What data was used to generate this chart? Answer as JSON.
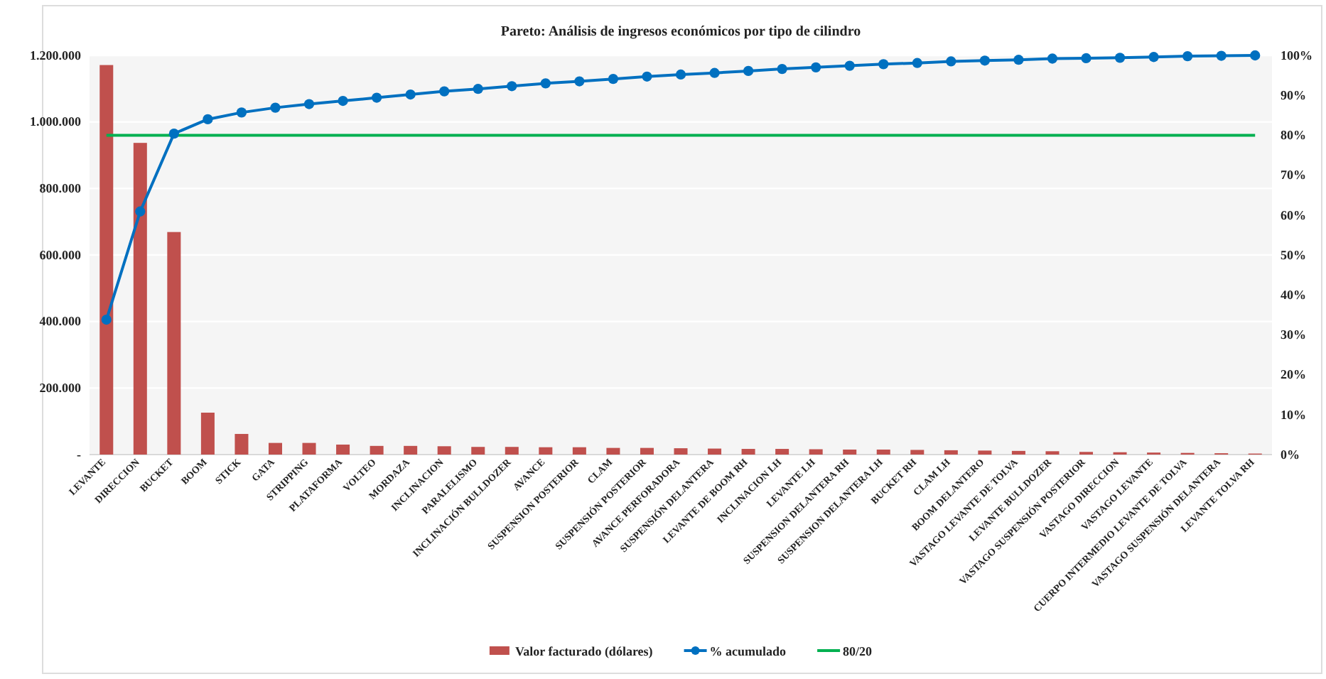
{
  "chart_data": {
    "type": "bar",
    "title": "Pareto: Análisis de ingresos económicos por tipo de cilindro",
    "categories": [
      "LEVANTE",
      "DIRECCION",
      "BUCKET",
      "BOOM",
      "STICK",
      "GATA",
      "STRIPPING",
      "PLATAFORMA",
      "VOLTEO",
      "MORDAZA",
      "INCLINACION",
      "PARALELISMO",
      "INCLINACIÓN BULLDOZER",
      "AVANCE",
      "SUSPENSION POSTERIOR",
      "CLAM",
      "SUSPENSIÓN POSTERIOR",
      "AVANCE PERFORADORA",
      "SUSPENSIÓN DELANTERA",
      "LEVANTE DE BOOM RH",
      "INCLINACION LH",
      "LEVANTE LH",
      "SUSPENSION DELANTERA RH",
      "SUSPENSION DELANTERA LH",
      "BUCKET RH",
      "CLAM LH",
      "BOOM DELANTERO",
      "VASTAGO LEVANTE DE TOLVA",
      "LEVANTE BULLDOZER",
      "VASTAGO SUSPENSIÓN POSTERIOR",
      "VASTAGO DIRECCION",
      "VASTAGO LEVANTE",
      "CUERPO INTERMEDIO LEVANTE DE TOLVA",
      "VASTAGO SUSPENSIÓN DELANTERA",
      "LEVANTE TOLVA RH"
    ],
    "series": [
      {
        "name": "Valor facturado (dólares)",
        "color": "#c0504d",
        "values": [
          1171000,
          937000,
          669000,
          126000,
          62000,
          35000,
          35000,
          30000,
          26000,
          26000,
          25000,
          23000,
          23000,
          22000,
          22000,
          20000,
          20000,
          19000,
          18000,
          17000,
          17000,
          16000,
          15000,
          15000,
          14000,
          13000,
          12000,
          11000,
          10000,
          8000,
          7000,
          6000,
          5000,
          4000,
          3000
        ]
      },
      {
        "name": "% acumulado",
        "type": "line",
        "axis": "y2",
        "color": "#0070c0",
        "values": [
          33.8,
          60.9,
          80.4,
          84.0,
          85.7,
          86.9,
          87.8,
          88.6,
          89.4,
          90.2,
          91.0,
          91.6,
          92.3,
          93.0,
          93.5,
          94.1,
          94.7,
          95.2,
          95.6,
          96.1,
          96.6,
          97.0,
          97.4,
          97.8,
          98.1,
          98.5,
          98.7,
          98.9,
          99.2,
          99.3,
          99.4,
          99.6,
          99.8,
          99.9,
          100
        ]
      }
    ],
    "ref_lines": [
      {
        "axis": "y2",
        "value": 80,
        "label": "80/20",
        "color": "#00b050"
      }
    ],
    "ylim": [
      0,
      1200000
    ],
    "yticks": [
      {
        "value": 0,
        "label": "-"
      },
      {
        "value": 200000,
        "label": "200.000"
      },
      {
        "value": 400000,
        "label": "400.000"
      },
      {
        "value": 600000,
        "label": "600.000"
      },
      {
        "value": 800000,
        "label": "800.000"
      },
      {
        "value": 1000000,
        "label": "1.000.000"
      },
      {
        "value": 1200000,
        "label": "1.200.000"
      }
    ],
    "y2lim": [
      0,
      100
    ],
    "y2ticks": [
      {
        "value": 0,
        "label": "0%"
      },
      {
        "value": 10,
        "label": "10%"
      },
      {
        "value": 20,
        "label": "20%"
      },
      {
        "value": 30,
        "label": "30%"
      },
      {
        "value": 40,
        "label": "40%"
      },
      {
        "value": 50,
        "label": "50%"
      },
      {
        "value": 60,
        "label": "60%"
      },
      {
        "value": 70,
        "label": "70%"
      },
      {
        "value": 80,
        "label": "80%"
      },
      {
        "value": 90,
        "label": "90%"
      },
      {
        "value": 100,
        "label": "100%"
      }
    ],
    "grid": "y",
    "legend": "bottom",
    "marker": "circle",
    "line_style": "solid"
  }
}
